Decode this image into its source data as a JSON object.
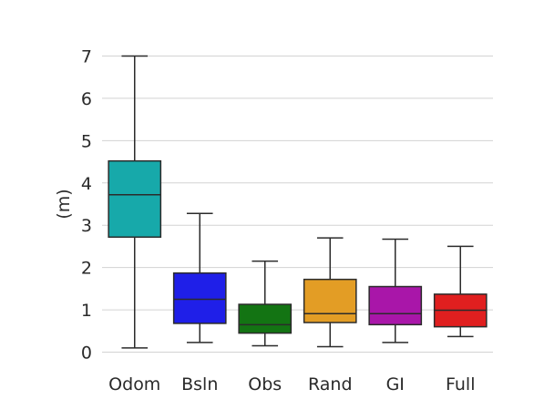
{
  "chart_data": {
    "type": "box",
    "title": "",
    "xlabel": "",
    "ylabel": "(m)",
    "ylim": [
      -0.15,
      7.3
    ],
    "yticks": [
      0,
      1,
      2,
      3,
      4,
      5,
      6,
      7
    ],
    "grid": "horizontal",
    "legend": "none",
    "categories": [
      "Odom",
      "Bsln",
      "Obs",
      "Rand",
      "GI",
      "Full"
    ],
    "boxes": [
      {
        "name": "Odom",
        "whisker_low": 0.1,
        "q1": 2.72,
        "median": 3.72,
        "q3": 4.52,
        "whisker_high": 7.0,
        "color": "#17a9aa"
      },
      {
        "name": "Bsln",
        "whisker_low": 0.23,
        "q1": 0.68,
        "median": 1.25,
        "q3": 1.87,
        "whisker_high": 3.28,
        "color": "#1f1fe8"
      },
      {
        "name": "Obs",
        "whisker_low": 0.15,
        "q1": 0.45,
        "median": 0.65,
        "q3": 1.13,
        "whisker_high": 2.15,
        "color": "#137413"
      },
      {
        "name": "Rand",
        "whisker_low": 0.13,
        "q1": 0.7,
        "median": 0.91,
        "q3": 1.72,
        "whisker_high": 2.7,
        "color": "#e39d25"
      },
      {
        "name": "GI",
        "whisker_low": 0.23,
        "q1": 0.65,
        "median": 0.91,
        "q3": 1.55,
        "whisker_high": 2.67,
        "color": "#a916a9"
      },
      {
        "name": "Full",
        "whisker_low": 0.37,
        "q1": 0.6,
        "median": 0.99,
        "q3": 1.37,
        "whisker_high": 2.5,
        "color": "#e01f1f"
      }
    ]
  }
}
